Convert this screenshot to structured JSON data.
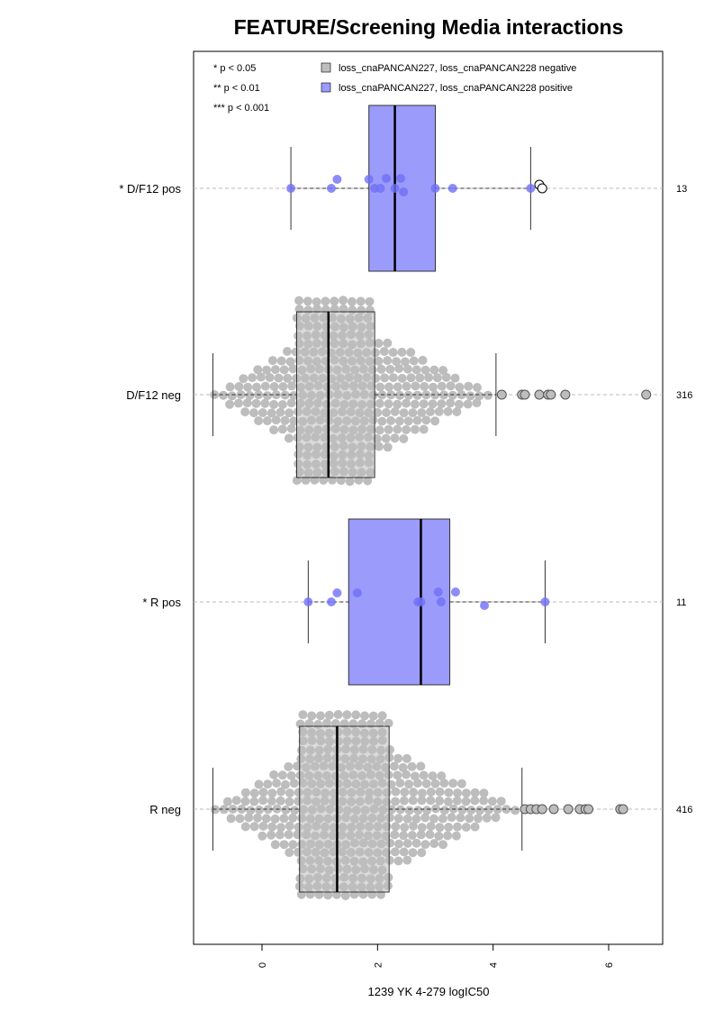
{
  "chart_data": {
    "type": "boxplot",
    "title": "FEATURE/Screening Media interactions",
    "xlabel": "1239 YK 4-279 logIC50",
    "xlim": [
      -1.95,
      7.6
    ],
    "xticks": [
      0,
      2,
      4,
      6
    ],
    "xtick_labels": [
      "0",
      "2",
      "4",
      "6"
    ],
    "legend": {
      "placement": "top",
      "significance": [
        "* p < 0.05",
        "** p < 0.01",
        "*** p < 0.001"
      ],
      "entries": [
        {
          "label": "loss_cnaPANCAN227, loss_cnaPANCAN228 negative",
          "color": "#bebebe"
        },
        {
          "label": "loss_cnaPANCAN227, loss_cnaPANCAN228 positive",
          "color": "#9b9bfc"
        }
      ]
    },
    "groups": [
      {
        "label": "* D/F12 pos",
        "n": "13",
        "status": "positive",
        "box": {
          "whisker_low": 0.5,
          "q1": 1.85,
          "median": 2.3,
          "q3": 3.0,
          "whisker_high": 4.65
        },
        "points": [
          0.5,
          1.2,
          1.3,
          1.85,
          1.95,
          2.05,
          2.15,
          2.3,
          2.4,
          2.45,
          3.0,
          3.3,
          4.65
        ],
        "outliers": [
          4.8,
          4.85
        ]
      },
      {
        "label": "D/F12 neg",
        "n": "316",
        "status": "negative",
        "box": {
          "whisker_low": -0.85,
          "q1": 0.6,
          "median": 1.15,
          "q3": 1.95,
          "whisker_high": 4.05
        },
        "outliers": [
          4.15,
          4.5,
          4.55,
          4.8,
          4.95,
          5.0,
          5.25,
          6.65
        ]
      },
      {
        "label": "* R pos",
        "n": "11",
        "status": "positive",
        "box": {
          "whisker_low": 0.8,
          "q1": 1.5,
          "median": 2.75,
          "q3": 3.25,
          "whisker_high": 4.9
        },
        "points": [
          0.8,
          1.2,
          1.3,
          1.65,
          2.7,
          2.75,
          3.05,
          3.1,
          3.35,
          3.85,
          4.9
        ]
      },
      {
        "label": "R neg",
        "n": "416",
        "status": "negative",
        "box": {
          "whisker_low": -0.85,
          "q1": 0.65,
          "median": 1.3,
          "q3": 2.2,
          "whisker_high": 4.5
        },
        "outliers": [
          4.55,
          4.65,
          4.75,
          4.85,
          5.05,
          5.3,
          5.5,
          5.6,
          5.65,
          6.2,
          6.25
        ]
      }
    ],
    "colors": {
      "negative_box": "#bebebe",
      "negative_point": "#bdbdbd",
      "positive_box": "#9b9bfc",
      "positive_point": "#6f6ff7"
    },
    "grid": "dashed horizontal at each group"
  }
}
